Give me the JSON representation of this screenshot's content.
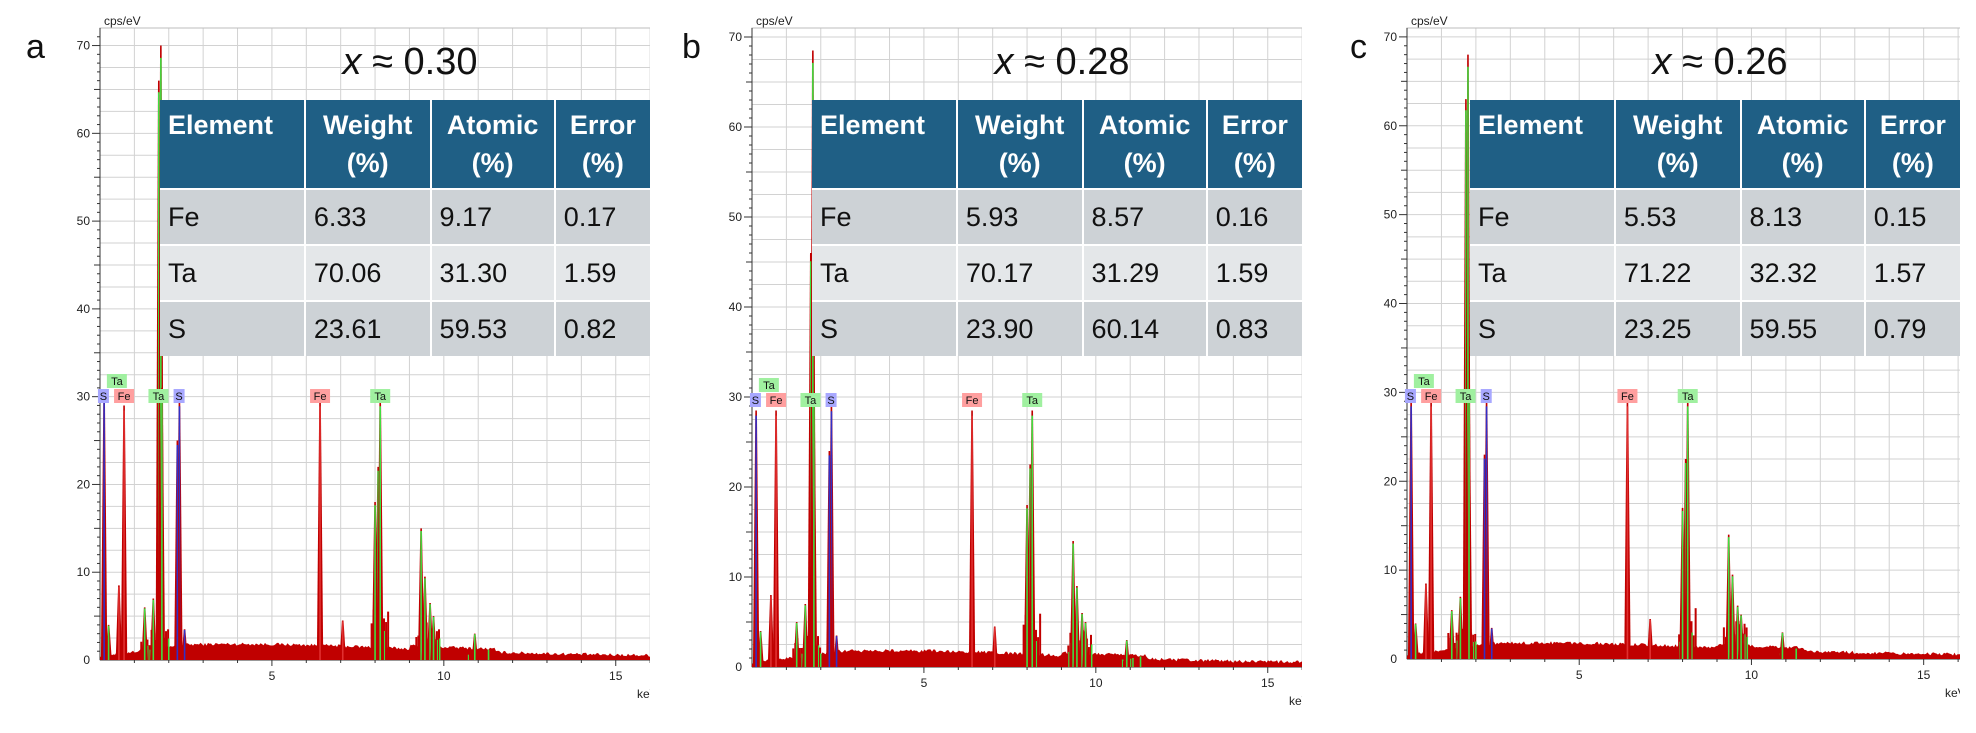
{
  "figure": {
    "colors": {
      "spectrum": "#c00000",
      "fe_line": "#e03030",
      "ta_line": "#40dd40",
      "s_line": "#3030c8",
      "fe_tag": "#ff9f9f",
      "ta_tag": "#a0f0a0",
      "s_tag": "#a8a8ff",
      "table_header": "#1f5f85",
      "row_dark": "#cdd2d6",
      "row_light": "#e4e7e9",
      "grid": "#d2d2d2"
    },
    "table_headers": [
      {
        "line1": "Element",
        "line2": ""
      },
      {
        "line1": "Weight",
        "line2": "(%)"
      },
      {
        "line1": "Atomic",
        "line2": "(%)"
      },
      {
        "line1": "Error",
        "line2": "(%)"
      }
    ]
  },
  "chart_data": [
    {
      "type": "bar",
      "panel": "a",
      "title": "x ≈ 0.30",
      "title_var": "x",
      "title_rest": "≈ 0.30",
      "ylabel": "cps/eV",
      "xlabel": "keV",
      "xlim": [
        0,
        16.2
      ],
      "ylim": [
        0,
        72
      ],
      "yticks": [
        10,
        20,
        30,
        40,
        50,
        60,
        70
      ],
      "xticks": [
        5,
        10,
        15
      ],
      "tags": [
        {
          "el": "Ta",
          "energy": 0.2,
          "row": 1
        },
        {
          "el": "S",
          "energy": 0.1,
          "row": 0
        },
        {
          "el": "Fe",
          "energy": 0.7,
          "row": 0
        },
        {
          "el": "Ta",
          "energy": 1.7,
          "row": 0
        },
        {
          "el": "S",
          "energy": 2.3,
          "row": 0
        },
        {
          "el": "Fe",
          "energy": 6.4,
          "row": 0
        },
        {
          "el": "Ta",
          "energy": 8.15,
          "row": 0
        }
      ],
      "peaks": [
        {
          "e": 0.12,
          "h": 30,
          "el": "S"
        },
        {
          "e": 0.25,
          "h": 4,
          "el": "Ta"
        },
        {
          "e": 0.7,
          "h": 29,
          "el": "Fe"
        },
        {
          "e": 0.55,
          "h": 8.5,
          "el": "Fe"
        },
        {
          "e": 1.3,
          "h": 6,
          "el": "Ta"
        },
        {
          "e": 1.55,
          "h": 7,
          "el": "Ta"
        },
        {
          "e": 1.71,
          "h": 66,
          "el": "Ta"
        },
        {
          "e": 1.77,
          "h": 70,
          "el": "Ta"
        },
        {
          "e": 1.8,
          "h": 31,
          "el": "Ta"
        },
        {
          "e": 2.31,
          "h": 29.5,
          "el": "S"
        },
        {
          "e": 2.25,
          "h": 25,
          "el": "S"
        },
        {
          "e": 2.46,
          "h": 3.5,
          "el": "S"
        },
        {
          "e": 6.4,
          "h": 29.5,
          "el": "Fe"
        },
        {
          "e": 7.06,
          "h": 4.5,
          "el": "Fe"
        },
        {
          "e": 8.09,
          "h": 22,
          "el": "Ta"
        },
        {
          "e": 8.15,
          "h": 29.5,
          "el": "Ta"
        },
        {
          "e": 8.0,
          "h": 18,
          "el": "Ta"
        },
        {
          "e": 9.34,
          "h": 15,
          "el": "Ta"
        },
        {
          "e": 9.45,
          "h": 9.5,
          "el": "Ta"
        },
        {
          "e": 9.6,
          "h": 6.5,
          "el": "Ta"
        },
        {
          "e": 9.7,
          "h": 5,
          "el": "Ta"
        },
        {
          "e": 10.9,
          "h": 3,
          "el": "Ta"
        },
        {
          "e": 11.3,
          "h": 1.2,
          "el": "Ta"
        }
      ],
      "table": [
        {
          "element": "Fe",
          "weight": "6.33",
          "atomic": "9.17",
          "error": "0.17"
        },
        {
          "element": "Ta",
          "weight": "70.06",
          "atomic": "31.30",
          "error": "1.59"
        },
        {
          "element": "S",
          "weight": "23.61",
          "atomic": "59.53",
          "error": "0.82"
        }
      ]
    },
    {
      "type": "bar",
      "panel": "b",
      "title": "x ≈ 0.28",
      "title_var": "x",
      "title_rest": "≈ 0.28",
      "ylabel": "cps/eV",
      "xlabel": "keV",
      "xlim": [
        0,
        16.2
      ],
      "ylim": [
        0,
        71
      ],
      "yticks": [
        10,
        20,
        30,
        40,
        50,
        60,
        70
      ],
      "xticks": [
        5,
        10,
        15
      ],
      "tags": [
        {
          "el": "Ta",
          "energy": 0.2,
          "row": 1
        },
        {
          "el": "S",
          "energy": 0.1,
          "row": 0
        },
        {
          "el": "Fe",
          "energy": 0.7,
          "row": 0
        },
        {
          "el": "Ta",
          "energy": 1.7,
          "row": 0
        },
        {
          "el": "S",
          "energy": 2.3,
          "row": 0
        },
        {
          "el": "Fe",
          "energy": 6.4,
          "row": 0
        },
        {
          "el": "Ta",
          "energy": 8.15,
          "row": 0
        }
      ],
      "peaks": [
        {
          "e": 0.12,
          "h": 28.5,
          "el": "S"
        },
        {
          "e": 0.25,
          "h": 4,
          "el": "Ta"
        },
        {
          "e": 0.7,
          "h": 28.5,
          "el": "Fe"
        },
        {
          "e": 0.55,
          "h": 8,
          "el": "Fe"
        },
        {
          "e": 1.3,
          "h": 5,
          "el": "Ta"
        },
        {
          "e": 1.55,
          "h": 7,
          "el": "Ta"
        },
        {
          "e": 1.71,
          "h": 46,
          "el": "Ta"
        },
        {
          "e": 1.77,
          "h": 68.5,
          "el": "Ta"
        },
        {
          "e": 1.8,
          "h": 30,
          "el": "Ta"
        },
        {
          "e": 2.31,
          "h": 29,
          "el": "S"
        },
        {
          "e": 2.25,
          "h": 24,
          "el": "S"
        },
        {
          "e": 2.46,
          "h": 3.5,
          "el": "S"
        },
        {
          "e": 6.4,
          "h": 28.5,
          "el": "Fe"
        },
        {
          "e": 7.06,
          "h": 4.5,
          "el": "Fe"
        },
        {
          "e": 8.09,
          "h": 22.5,
          "el": "Ta"
        },
        {
          "e": 8.15,
          "h": 28.5,
          "el": "Ta"
        },
        {
          "e": 8.0,
          "h": 18,
          "el": "Ta"
        },
        {
          "e": 9.34,
          "h": 14,
          "el": "Ta"
        },
        {
          "e": 9.45,
          "h": 9,
          "el": "Ta"
        },
        {
          "e": 9.6,
          "h": 6,
          "el": "Ta"
        },
        {
          "e": 9.7,
          "h": 5,
          "el": "Ta"
        },
        {
          "e": 10.9,
          "h": 3,
          "el": "Ta"
        },
        {
          "e": 11.3,
          "h": 1.2,
          "el": "Ta"
        }
      ],
      "table": [
        {
          "element": "Fe",
          "weight": "5.93",
          "atomic": "8.57",
          "error": "0.16"
        },
        {
          "element": "Ta",
          "weight": "70.17",
          "atomic": "31.29",
          "error": "1.59"
        },
        {
          "element": "S",
          "weight": "23.90",
          "atomic": "60.14",
          "error": "0.83"
        }
      ]
    },
    {
      "type": "bar",
      "panel": "c",
      "title": "x ≈ 0.26",
      "title_var": "x",
      "title_rest": "≈ 0.26",
      "ylabel": "cps/eV",
      "xlabel": "keV",
      "xlim": [
        0,
        16.2
      ],
      "ylim": [
        0,
        71
      ],
      "yticks": [
        10,
        20,
        30,
        40,
        50,
        60,
        70
      ],
      "xticks": [
        5,
        10,
        15
      ],
      "tags": [
        {
          "el": "Ta",
          "energy": 0.2,
          "row": 1
        },
        {
          "el": "S",
          "energy": 0.1,
          "row": 0
        },
        {
          "el": "Fe",
          "energy": 0.7,
          "row": 0
        },
        {
          "el": "Ta",
          "energy": 1.7,
          "row": 0
        },
        {
          "el": "S",
          "energy": 2.3,
          "row": 0
        },
        {
          "el": "Fe",
          "energy": 6.4,
          "row": 0
        },
        {
          "el": "Ta",
          "energy": 8.15,
          "row": 0
        }
      ],
      "peaks": [
        {
          "e": 0.12,
          "h": 29,
          "el": "S"
        },
        {
          "e": 0.25,
          "h": 4,
          "el": "Ta"
        },
        {
          "e": 0.7,
          "h": 29,
          "el": "Fe"
        },
        {
          "e": 0.55,
          "h": 8.5,
          "el": "Fe"
        },
        {
          "e": 1.3,
          "h": 5.5,
          "el": "Ta"
        },
        {
          "e": 1.55,
          "h": 7,
          "el": "Ta"
        },
        {
          "e": 1.71,
          "h": 63,
          "el": "Ta"
        },
        {
          "e": 1.77,
          "h": 68,
          "el": "Ta"
        },
        {
          "e": 1.8,
          "h": 30,
          "el": "Ta"
        },
        {
          "e": 2.31,
          "h": 29,
          "el": "S"
        },
        {
          "e": 2.25,
          "h": 23,
          "el": "S"
        },
        {
          "e": 2.46,
          "h": 3.5,
          "el": "S"
        },
        {
          "e": 6.4,
          "h": 29,
          "el": "Fe"
        },
        {
          "e": 7.06,
          "h": 4.5,
          "el": "Fe"
        },
        {
          "e": 8.09,
          "h": 22.5,
          "el": "Ta"
        },
        {
          "e": 8.15,
          "h": 29,
          "el": "Ta"
        },
        {
          "e": 8.0,
          "h": 17,
          "el": "Ta"
        },
        {
          "e": 9.34,
          "h": 14,
          "el": "Ta"
        },
        {
          "e": 9.45,
          "h": 9.5,
          "el": "Ta"
        },
        {
          "e": 9.6,
          "h": 6,
          "el": "Ta"
        },
        {
          "e": 9.7,
          "h": 5,
          "el": "Ta"
        },
        {
          "e": 10.9,
          "h": 3,
          "el": "Ta"
        },
        {
          "e": 11.3,
          "h": 1.2,
          "el": "Ta"
        }
      ],
      "table": [
        {
          "element": "Fe",
          "weight": "5.53",
          "atomic": "8.13",
          "error": "0.15"
        },
        {
          "element": "Ta",
          "weight": "71.22",
          "atomic": "32.32",
          "error": "1.57"
        },
        {
          "element": "S",
          "weight": "23.25",
          "atomic": "59.55",
          "error": "0.79"
        }
      ]
    }
  ]
}
